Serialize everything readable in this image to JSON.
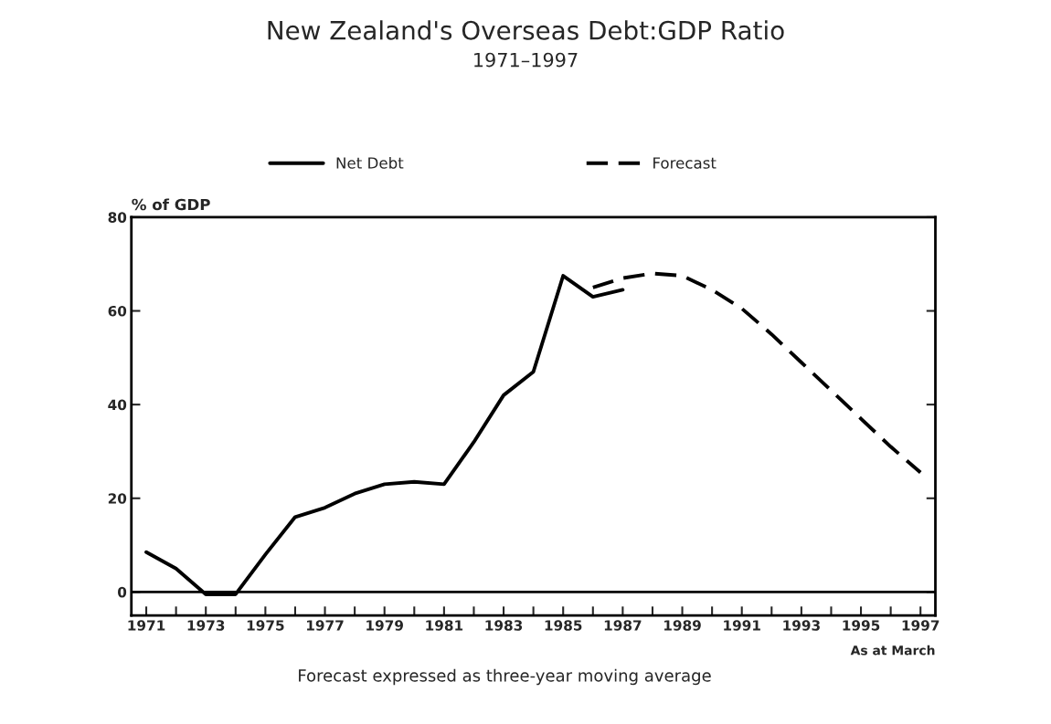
{
  "chart_data": {
    "type": "line",
    "title": "New Zealand's Overseas Debt:GDP Ratio",
    "subtitle": "1971–1997",
    "ylabel": "% of GDP",
    "annotations": [
      "As at March",
      "Forecast expressed as three-year moving average"
    ],
    "series": [
      {
        "name": "Net Debt",
        "color": "#000000",
        "line_style": "solid",
        "x": [
          1971,
          1972,
          1973,
          1974,
          1975,
          1976,
          1977,
          1978,
          1979,
          1980,
          1981,
          1982,
          1983,
          1984,
          1985,
          1986,
          1987
        ],
        "values": [
          8.5,
          5,
          -0.5,
          -0.5,
          8,
          16,
          18,
          21,
          23,
          23.5,
          23,
          32,
          42,
          47,
          67.5,
          63,
          64.5
        ]
      },
      {
        "name": "Forecast",
        "color": "#000000",
        "line_style": "dashed",
        "x": [
          1986,
          1987,
          1988,
          1989,
          1990,
          1991,
          1992,
          1993,
          1994,
          1995,
          1996,
          1997
        ],
        "values": [
          65,
          67,
          68,
          67.5,
          64.5,
          60.5,
          55,
          49,
          43,
          37,
          31,
          25.5
        ]
      }
    ],
    "xlim": [
      1970.5,
      1997.5
    ],
    "xticks": [
      1971,
      {
        "value": 1972,
        "label": null
      },
      1973,
      {
        "value": 1974,
        "label": null
      },
      1975,
      {
        "value": 1976,
        "label": null
      },
      1977,
      {
        "value": 1978,
        "label": null
      },
      1979,
      {
        "value": 1980,
        "label": null
      },
      1981,
      {
        "value": 1982,
        "label": null
      },
      1983,
      {
        "value": 1984,
        "label": null
      },
      1985,
      {
        "value": 1986,
        "label": null
      },
      1987,
      {
        "value": 1988,
        "label": null
      },
      1989,
      {
        "value": 1990,
        "label": null
      },
      1991,
      {
        "value": 1992,
        "label": null
      },
      1993,
      {
        "value": 1994,
        "label": null
      },
      1995,
      {
        "value": 1996,
        "label": null
      },
      1997
    ],
    "ylim": [
      -5,
      80
    ],
    "yticks": [
      0,
      20,
      40,
      60,
      80
    ],
    "ref_lines": [
      {
        "axis": "y",
        "value": 0,
        "color": "#000000",
        "line_style": "solid"
      }
    ],
    "grid": false,
    "legend": "top",
    "marker": "none"
  }
}
